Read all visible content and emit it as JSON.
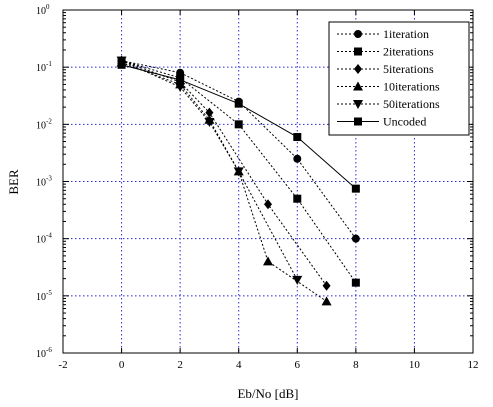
{
  "chart_data": {
    "type": "line",
    "title": "",
    "xlabel": "Eb/No [dB]",
    "ylabel": "BER",
    "xlim": [
      -2,
      12
    ],
    "ylim": [
      1e-06,
      1
    ],
    "yscale": "log",
    "grid": true,
    "legend_position": "top-right",
    "x_ticks": [
      {
        "v": -2,
        "label": "-2"
      },
      {
        "v": 0,
        "label": "0"
      },
      {
        "v": 2,
        "label": "2"
      },
      {
        "v": 4,
        "label": "4"
      },
      {
        "v": 6,
        "label": "6"
      },
      {
        "v": 8,
        "label": "8"
      },
      {
        "v": 10,
        "label": "10"
      },
      {
        "v": 12,
        "label": "12"
      }
    ],
    "y_ticks": [
      {
        "v": 0,
        "mant": "10",
        "exp": "0"
      },
      {
        "v": -1,
        "mant": "10",
        "exp": "-1"
      },
      {
        "v": -2,
        "mant": "10",
        "exp": "-2"
      },
      {
        "v": -3,
        "mant": "10",
        "exp": "-3"
      },
      {
        "v": -4,
        "mant": "10",
        "exp": "-4"
      },
      {
        "v": -5,
        "mant": "10",
        "exp": "-5"
      },
      {
        "v": -6,
        "mant": "10",
        "exp": "-6"
      }
    ],
    "series": [
      {
        "name": "1iteration",
        "marker": "circle",
        "dash": "dotted",
        "x": [
          0,
          2,
          4,
          6,
          8
        ],
        "y": [
          0.13,
          0.08,
          0.025,
          0.0025,
          0.0001
        ]
      },
      {
        "name": "2iterations",
        "marker": "square",
        "dash": "dotted",
        "x": [
          0,
          2,
          4,
          6,
          8
        ],
        "y": [
          0.13,
          0.065,
          0.01,
          0.0005,
          1.7e-05
        ]
      },
      {
        "name": "5iterations",
        "marker": "diamond",
        "dash": "dotted",
        "x": [
          0,
          2,
          3,
          5,
          7
        ],
        "y": [
          0.13,
          0.055,
          0.016,
          0.0004,
          1.5e-05
        ]
      },
      {
        "name": "10iterations",
        "marker": "triangle-up",
        "dash": "dotted",
        "x": [
          0,
          2,
          3,
          4,
          5,
          7
        ],
        "y": [
          0.12,
          0.05,
          0.012,
          0.0015,
          4e-05,
          8e-06
        ]
      },
      {
        "name": "50iterations",
        "marker": "triangle-down",
        "dash": "dotted",
        "x": [
          0,
          2,
          3,
          4,
          6
        ],
        "y": [
          0.13,
          0.045,
          0.011,
          0.0015,
          1.9e-05
        ]
      },
      {
        "name": "Uncoded",
        "marker": "square",
        "dash": "solid",
        "x": [
          0,
          2,
          4,
          6,
          8
        ],
        "y": [
          0.11,
          0.06,
          0.023,
          0.006,
          0.00075
        ]
      }
    ]
  }
}
